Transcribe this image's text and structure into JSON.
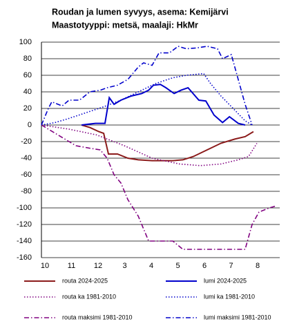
{
  "chart_data": {
    "type": "line",
    "title": "Roudan ja lumen syvyys, asema: Kemijärvi",
    "subtitle": "Maastotyyppi: metsä, maalaji: HkMr",
    "xlim": [
      -0.13,
      8.83
    ],
    "xticks": [
      {
        "value": 0,
        "label": "10"
      },
      {
        "value": 1,
        "label": "11"
      },
      {
        "value": 2,
        "label": "12"
      },
      3,
      4,
      5,
      6,
      7,
      8
    ],
    "ylim": [
      -160,
      100
    ],
    "yticks": [
      -160,
      -140,
      -120,
      -100,
      -80,
      -60,
      -40,
      -20,
      0,
      20,
      40,
      60,
      80,
      100
    ],
    "grid": true,
    "series": [
      {
        "name": "routa 2024-2025",
        "color": "#8b1a1a",
        "dash": "solid",
        "x": [
          1.38,
          1.69,
          2.03,
          2.21,
          2.39,
          2.73,
          3.12,
          3.51,
          4.03,
          4.81,
          5.19,
          5.58,
          6.1,
          6.62,
          7.14,
          7.53,
          7.84
        ],
        "values": [
          0,
          -3,
          -8,
          -10,
          -35,
          -35,
          -40,
          -42,
          -43,
          -43,
          -42,
          -38,
          -30,
          -22,
          -17,
          -14,
          -8
        ]
      },
      {
        "name": "lumi 2024-2025",
        "color": "#0000cc",
        "dash": "solid",
        "x": [
          1.38,
          1.9,
          2.26,
          2.42,
          2.6,
          2.86,
          3.25,
          3.64,
          3.9,
          4.08,
          4.34,
          4.55,
          4.86,
          5.12,
          5.38,
          5.79,
          6.05,
          6.36,
          6.68,
          6.94,
          7.27,
          7.53
        ],
        "values": [
          0,
          2,
          2,
          33,
          25,
          30,
          35,
          38,
          42,
          48,
          49,
          45,
          38,
          42,
          45,
          30,
          29,
          12,
          3,
          10,
          2,
          0
        ]
      },
      {
        "name": "routa ka 1981-2010",
        "color": "#800080",
        "dash": "dotted",
        "x": [
          -0.13,
          0.91,
          1.95,
          2.99,
          4.03,
          5.06,
          5.84,
          6.62,
          7.27,
          7.66,
          7.97
        ],
        "values": [
          0,
          -5,
          -12,
          -25,
          -40,
          -47,
          -49,
          -47,
          -42,
          -38,
          -22
        ]
      },
      {
        "name": "lumi ka 1981-2010",
        "color": "#0000cc",
        "dash": "dotted",
        "x": [
          -0.13,
          0.39,
          0.91,
          1.56,
          2.21,
          2.86,
          3.51,
          4.16,
          4.81,
          5.32,
          5.97,
          6.23,
          6.62,
          7.14,
          7.53,
          7.79
        ],
        "values": [
          0,
          3,
          8,
          15,
          22,
          30,
          40,
          50,
          57,
          60,
          62,
          50,
          35,
          18,
          5,
          0
        ]
      },
      {
        "name": "routa maksimi 1981-2010",
        "color": "#800080",
        "dash": "dashdot",
        "x": [
          -0.13,
          0.39,
          0.91,
          1.17,
          1.69,
          2.08,
          2.34,
          2.6,
          2.86,
          3.12,
          3.51,
          3.9,
          4.81,
          5.19,
          6.1,
          7.53,
          7.79,
          8.05,
          8.44,
          8.65
        ],
        "values": [
          0,
          -10,
          -20,
          -25,
          -28,
          -30,
          -40,
          -60,
          -70,
          -90,
          -110,
          -140,
          -140,
          -150,
          -150,
          -150,
          -120,
          -105,
          -100,
          -98
        ]
      },
      {
        "name": "lumi maksimi 1981-2010",
        "color": "#0000cc",
        "dash": "dashdot",
        "x": [
          -0.13,
          0.13,
          0.26,
          0.65,
          0.91,
          1.3,
          1.69,
          2.08,
          2.34,
          2.73,
          3.12,
          3.51,
          3.71,
          4.03,
          4.29,
          4.68,
          5.01,
          5.32,
          5.71,
          6.1,
          6.49,
          6.68,
          6.88,
          7.01,
          7.27,
          7.53,
          7.79
        ],
        "values": [
          0,
          20,
          28,
          23,
          30,
          30,
          40,
          42,
          45,
          48,
          55,
          70,
          75,
          72,
          87,
          87,
          95,
          92,
          93,
          95,
          92,
          80,
          83,
          85,
          55,
          25,
          0
        ]
      }
    ]
  }
}
